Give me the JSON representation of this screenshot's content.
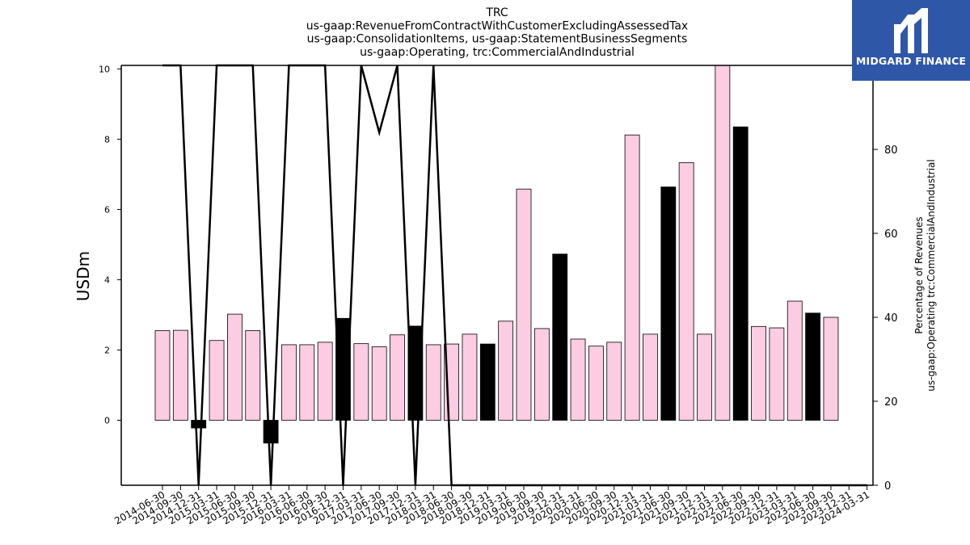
{
  "brand": {
    "name": "MIDGARD FINANCE",
    "logo_icon": "midgard-m-icon",
    "logo_bg": "#2e57a8"
  },
  "chart_data": {
    "type": "bar",
    "title_lines": [
      "TRC",
      "us-gaap:RevenueFromContractWithCustomerExcludingAssessedTax",
      "us-gaap:ConsolidationItems, us-gaap:StatementBusinessSegments",
      "us-gaap:Operating, trc:CommercialAndIndustrial"
    ],
    "ylabel": "USDm",
    "y2label_lines": [
      "Percentage of Revenues",
      "us-gaap:Operating trc:CommercialAndIndustrial"
    ],
    "ylim": [
      -1.85,
      10.1
    ],
    "y2lim": [
      0,
      100
    ],
    "yticks": [
      0,
      2,
      4,
      6,
      8,
      10
    ],
    "y2ticks": [
      0,
      20,
      40,
      60,
      80,
      100
    ],
    "colors": {
      "quarter_bar": "#fccce3",
      "annual_bar": "#000000",
      "line": "#000000"
    },
    "categories": [
      "2014-06-30",
      "2014-09-30",
      "2014-12-31",
      "2015-03-31",
      "2015-06-30",
      "2015-09-30",
      "2015-12-31",
      "2016-03-31",
      "2016-06-30",
      "2016-09-30",
      "2016-12-31",
      "2017-03-31",
      "2017-06-30",
      "2017-09-30",
      "2017-12-31",
      "2018-03-31",
      "2018-06-30",
      "2018-09-30",
      "2018-12-31",
      "2019-03-31",
      "2019-06-30",
      "2019-09-30",
      "2019-12-31",
      "2020-03-31",
      "2020-06-30",
      "2020-09-30",
      "2020-12-31",
      "2021-03-31",
      "2021-06-30",
      "2021-09-30",
      "2021-12-31",
      "2022-03-31",
      "2022-06-30",
      "2022-09-30",
      "2022-12-31",
      "2023-03-31",
      "2023-06-30",
      "2023-09-30",
      "2023-12-31",
      "2024-03-31"
    ],
    "bar_series": [
      {
        "x": "2014-06-30",
        "value": 2.55,
        "kind": "quarter"
      },
      {
        "x": "2014-09-30",
        "value": 2.56,
        "kind": "quarter"
      },
      {
        "x": "2014-12-31",
        "value": -0.22,
        "kind": "annual"
      },
      {
        "x": "2015-03-31",
        "value": 2.27,
        "kind": "quarter"
      },
      {
        "x": "2015-06-30",
        "value": 3.02,
        "kind": "quarter"
      },
      {
        "x": "2015-09-30",
        "value": 2.55,
        "kind": "quarter"
      },
      {
        "x": "2015-12-31",
        "value": -0.65,
        "kind": "annual"
      },
      {
        "x": "2016-03-31",
        "value": 2.15,
        "kind": "quarter"
      },
      {
        "x": "2016-06-30",
        "value": 2.15,
        "kind": "quarter"
      },
      {
        "x": "2016-09-30",
        "value": 2.22,
        "kind": "quarter"
      },
      {
        "x": "2016-12-31",
        "value": 2.9,
        "kind": "annual"
      },
      {
        "x": "2017-03-31",
        "value": 2.18,
        "kind": "quarter"
      },
      {
        "x": "2017-06-30",
        "value": 2.09,
        "kind": "quarter"
      },
      {
        "x": "2017-09-30",
        "value": 2.43,
        "kind": "quarter"
      },
      {
        "x": "2017-12-31",
        "value": 2.68,
        "kind": "annual"
      },
      {
        "x": "2018-03-31",
        "value": 2.15,
        "kind": "quarter"
      },
      {
        "x": "2018-06-30",
        "value": 2.17,
        "kind": "quarter"
      },
      {
        "x": "2018-09-30",
        "value": 2.45,
        "kind": "quarter"
      },
      {
        "x": "2018-12-31",
        "value": 2.17,
        "kind": "annual"
      },
      {
        "x": "2019-03-31",
        "value": 2.82,
        "kind": "quarter"
      },
      {
        "x": "2019-06-30",
        "value": 6.58,
        "kind": "quarter"
      },
      {
        "x": "2019-09-30",
        "value": 2.61,
        "kind": "quarter"
      },
      {
        "x": "2019-12-31",
        "value": 4.73,
        "kind": "annual"
      },
      {
        "x": "2020-03-31",
        "value": 2.31,
        "kind": "quarter"
      },
      {
        "x": "2020-06-30",
        "value": 2.11,
        "kind": "quarter"
      },
      {
        "x": "2020-09-30",
        "value": 2.22,
        "kind": "quarter"
      },
      {
        "x": "2020-12-31",
        "value": 8.12,
        "kind": "quarter"
      },
      {
        "x": "2021-03-31",
        "value": 2.45,
        "kind": "quarter"
      },
      {
        "x": "2021-06-30",
        "value": 6.64,
        "kind": "annual"
      },
      {
        "x": "2021-09-30",
        "value": 7.33,
        "kind": "quarter"
      },
      {
        "x": "2021-12-31",
        "value": 2.45,
        "kind": "quarter"
      },
      {
        "x": "2022-03-31",
        "value": 10.3,
        "kind": "quarter"
      },
      {
        "x": "2022-06-30",
        "value": 8.35,
        "kind": "annual"
      },
      {
        "x": "2022-09-30",
        "value": 2.67,
        "kind": "quarter"
      },
      {
        "x": "2022-12-31",
        "value": 2.63,
        "kind": "quarter"
      },
      {
        "x": "2023-03-31",
        "value": 3.39,
        "kind": "quarter"
      },
      {
        "x": "2023-06-30",
        "value": 3.05,
        "kind": "annual"
      },
      {
        "x": "2023-09-30",
        "value": 2.93,
        "kind": "quarter"
      }
    ],
    "line_series": {
      "axis": "right",
      "points": [
        {
          "x": "2014-06-30",
          "y": 100
        },
        {
          "x": "2014-09-30",
          "y": 100
        },
        {
          "x": "2014-12-31",
          "y": 0
        },
        {
          "x": "2015-03-31",
          "y": 100
        },
        {
          "x": "2015-06-30",
          "y": 100
        },
        {
          "x": "2015-09-30",
          "y": 100
        },
        {
          "x": "2015-12-31",
          "y": 0
        },
        {
          "x": "2016-03-31",
          "y": 100
        },
        {
          "x": "2016-06-30",
          "y": 100
        },
        {
          "x": "2016-09-30",
          "y": 100
        },
        {
          "x": "2016-12-31",
          "y": 0
        },
        {
          "x": "2017-03-31",
          "y": 100
        },
        {
          "x": "2017-06-30",
          "y": 84
        },
        {
          "x": "2017-09-30",
          "y": 100
        },
        {
          "x": "2017-12-31",
          "y": 0
        },
        {
          "x": "2018-03-31",
          "y": 100
        },
        {
          "x": "2018-06-30",
          "y": 0
        },
        {
          "x": "2018-09-30",
          "y": 0
        },
        {
          "x": "2018-12-31",
          "y": 0
        },
        {
          "x": "2019-03-31",
          "y": 0
        },
        {
          "x": "2019-06-30",
          "y": 0
        },
        {
          "x": "2019-09-30",
          "y": 0
        },
        {
          "x": "2019-12-31",
          "y": 0
        },
        {
          "x": "2020-03-31",
          "y": 0
        },
        {
          "x": "2020-06-30",
          "y": 0
        },
        {
          "x": "2020-09-30",
          "y": 0
        },
        {
          "x": "2020-12-31",
          "y": 0
        },
        {
          "x": "2021-03-31",
          "y": 0
        },
        {
          "x": "2021-06-30",
          "y": 0
        },
        {
          "x": "2021-09-30",
          "y": 0
        },
        {
          "x": "2021-12-31",
          "y": 0
        },
        {
          "x": "2022-03-31",
          "y": 0
        },
        {
          "x": "2022-06-30",
          "y": 0
        },
        {
          "x": "2022-09-30",
          "y": 0
        },
        {
          "x": "2022-12-31",
          "y": 0
        },
        {
          "x": "2023-03-31",
          "y": 0
        },
        {
          "x": "2023-06-30",
          "y": 0
        },
        {
          "x": "2023-09-30",
          "y": 0
        },
        {
          "x": "2023-12-31",
          "y": 0
        },
        {
          "x": "2024-03-31",
          "y": 0
        }
      ]
    },
    "grid": false,
    "legend": "none"
  }
}
